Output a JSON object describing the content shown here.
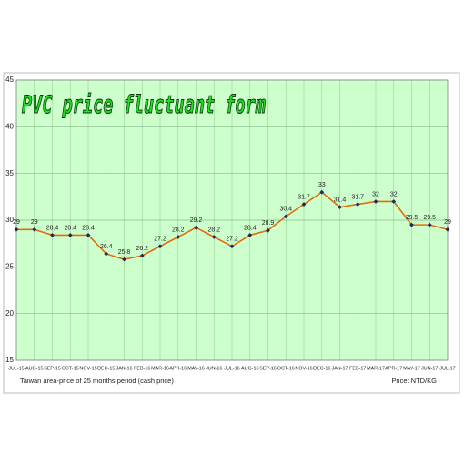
{
  "chart_data": {
    "type": "line",
    "title": "PVC price fluctuant form",
    "caption": "Taiwan area-price of 25 months period (cash price)",
    "unit_note": "Price: NTD/KG",
    "categories": [
      "JUL-15",
      "AUG-15",
      "SEP-15",
      "OCT-15",
      "NOV-15",
      "DEC-15",
      "JAN-16",
      "FEB-16",
      "MAR-16",
      "APR-16",
      "MAY-16",
      "JUN-16",
      "JUL-16",
      "AUG-16",
      "SEP-16",
      "OCT-16",
      "NOV-16",
      "DEC-16",
      "JAN-17",
      "FEB-17",
      "MAR-17",
      "APR-17",
      "MAY-17",
      "JUN-17",
      "JUL-17"
    ],
    "values": [
      29,
      29,
      28.4,
      28.4,
      28.4,
      26.4,
      25.8,
      26.2,
      27.2,
      28.2,
      29.2,
      28.2,
      27.2,
      28.4,
      28.9,
      30.4,
      31.7,
      33,
      31.4,
      31.7,
      32,
      32,
      29.5,
      29.5,
      29
    ],
    "color": "#e46c0a",
    "marker_color": "#1f2a5c",
    "background": "#ccffcc",
    "ylim": [
      15,
      45
    ],
    "yticks": [
      15,
      20,
      25,
      30,
      35,
      40,
      45
    ],
    "grid": true
  }
}
